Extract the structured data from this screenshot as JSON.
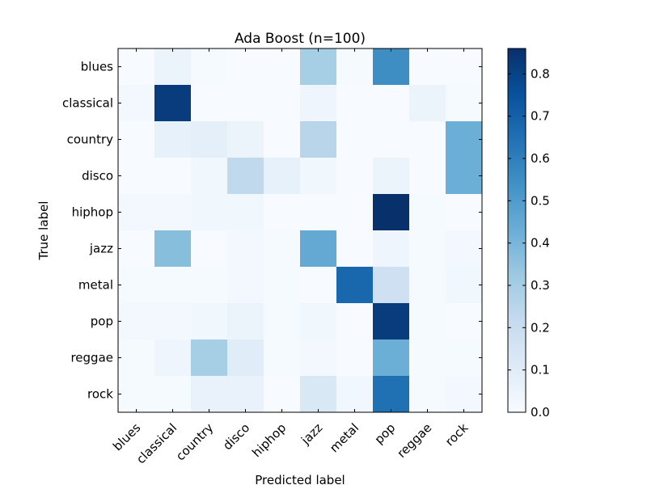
{
  "chart_data": {
    "type": "heatmap",
    "title": "Ada Boost (n=100)",
    "xlabel": "Predicted label",
    "ylabel": "True label",
    "x_categories": [
      "blues",
      "classical",
      "country",
      "disco",
      "hiphop",
      "jazz",
      "metal",
      "pop",
      "reggae",
      "rock"
    ],
    "y_categories": [
      "blues",
      "classical",
      "country",
      "disco",
      "hiphop",
      "jazz",
      "metal",
      "pop",
      "reggae",
      "rock"
    ],
    "values": [
      [
        0.0,
        0.05,
        0.01,
        0.0,
        0.0,
        0.3,
        0.01,
        0.55,
        0.0,
        0.0
      ],
      [
        0.02,
        0.82,
        0.0,
        0.0,
        0.0,
        0.04,
        0.0,
        0.0,
        0.05,
        0.01
      ],
      [
        0.0,
        0.07,
        0.08,
        0.05,
        0.0,
        0.25,
        0.0,
        0.0,
        0.0,
        0.43
      ],
      [
        0.0,
        0.0,
        0.03,
        0.23,
        0.07,
        0.03,
        0.0,
        0.05,
        0.0,
        0.43
      ],
      [
        0.02,
        0.02,
        0.03,
        0.03,
        0.0,
        0.0,
        0.0,
        0.86,
        0.01,
        0.0
      ],
      [
        0.0,
        0.37,
        0.0,
        0.02,
        0.01,
        0.45,
        0.0,
        0.04,
        0.01,
        0.02
      ],
      [
        0.01,
        0.01,
        0.01,
        0.02,
        0.01,
        0.0,
        0.68,
        0.18,
        0.01,
        0.03
      ],
      [
        0.02,
        0.02,
        0.03,
        0.05,
        0.01,
        0.03,
        0.0,
        0.82,
        0.01,
        0.0
      ],
      [
        0.01,
        0.04,
        0.3,
        0.1,
        0.01,
        0.02,
        0.0,
        0.43,
        0.01,
        0.01
      ],
      [
        0.01,
        0.01,
        0.06,
        0.06,
        0.0,
        0.13,
        0.03,
        0.65,
        0.01,
        0.02
      ]
    ],
    "colormap": "Blues",
    "colorbar": {
      "range": [
        0.0,
        0.86
      ],
      "ticks": [
        "0.0",
        "0.1",
        "0.2",
        "0.3",
        "0.4",
        "0.5",
        "0.6",
        "0.7",
        "0.8"
      ]
    },
    "grid": false
  }
}
